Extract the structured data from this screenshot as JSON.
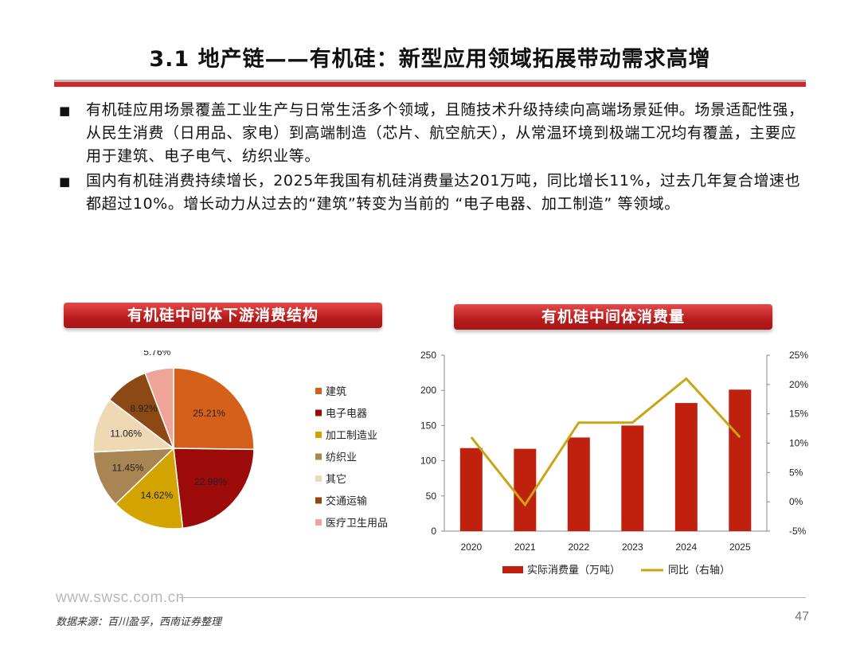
{
  "slide": {
    "title": "3.1 地产链——有机硅：新型应用领域拓展带动需求高增",
    "bullet_mark": "■",
    "bullets": [
      "有机硅应用场景覆盖工业生产与日常生活多个领域，且随技术升级持续向高端场景延伸。场景适配性强，从民生消费（日用品、家电）到高端制造（芯片、航空航天），从常温环境到极端工况均有覆盖，主要应用于建筑、电子电气、纺织业等。",
      "国内有机硅消费持续增长，2025年我国有机硅消费量达201万吨，同比增长11%，过去几年复合增速也都超过10%。增长动力从过去的“建筑”转变为当前的 “电子电器、加工制造” 等领域。"
    ],
    "left_chart_title": "有机硅中间体下游消费结构",
    "right_chart_title": "有机硅中间体消费量",
    "footer_url": "www.swsc.com.cn",
    "footer_source": "数据来源：百川盈孚，西南证券整理",
    "page_number": "47"
  },
  "chart_data": [
    {
      "type": "pie",
      "categories": [
        "建筑",
        "电子电器",
        "加工制造业",
        "纺织业",
        "其它",
        "交通运输",
        "医疗卫生用品"
      ],
      "values": [
        25.21,
        22.98,
        14.62,
        11.45,
        11.06,
        8.92,
        5.76
      ],
      "value_labels": [
        "25.21%",
        "22.98%",
        "14.62%",
        "11.45%",
        "11.06%",
        "8.92%",
        "5.76%"
      ],
      "colors": [
        "#d4601a",
        "#9c0a0a",
        "#d3a400",
        "#a98554",
        "#eed9b4",
        "#8c4914",
        "#efa49a"
      ],
      "legend_position": "right"
    },
    {
      "type": "bar+line",
      "categories": [
        "2020",
        "2021",
        "2022",
        "2023",
        "2024",
        "2025"
      ],
      "series": [
        {
          "name": "实际消费量（万吨）",
          "type": "bar",
          "axis": "left",
          "color": "#c0210f",
          "values": [
            118,
            117,
            133,
            150,
            182,
            201
          ]
        },
        {
          "name": "同比（右轴）",
          "type": "line",
          "axis": "right",
          "color": "#c9a514",
          "values": [
            11,
            -0.5,
            13.5,
            13.5,
            21,
            11
          ]
        }
      ],
      "y_left": {
        "lim": [
          0,
          250
        ],
        "ticks": [
          0,
          50,
          100,
          150,
          200,
          250
        ],
        "tick_labels": [
          "0",
          "50",
          "100",
          "150",
          "200",
          "250"
        ]
      },
      "y_right": {
        "lim": [
          -5,
          25
        ],
        "ticks": [
          -5,
          0,
          5,
          10,
          15,
          20,
          25
        ],
        "tick_labels": [
          "-5%",
          "0%",
          "5%",
          "10%",
          "15%",
          "20%",
          "25%"
        ]
      },
      "grid": false,
      "legend_position": "bottom"
    }
  ]
}
